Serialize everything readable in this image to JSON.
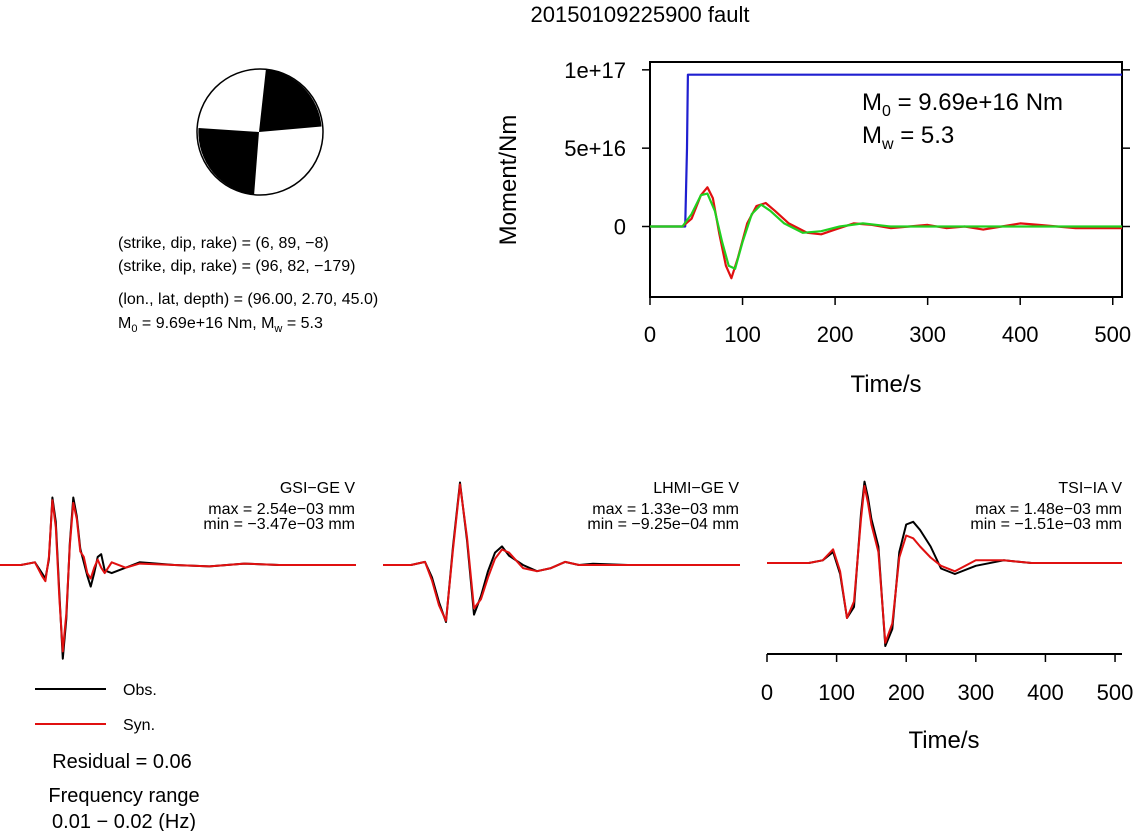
{
  "title": "20150109225900 fault",
  "mechanism": {
    "plane1": "(strike, dip, rake) = (6, 89, −8)",
    "plane2": "(strike, dip, rake) = (96, 82, −179)",
    "location": "(lon., lat, depth) = (96.00, 2.70, 45.0)",
    "moment_prefix": "M",
    "moment_sub": "0",
    "moment_value": " = 9.69e+16 Nm, M",
    "mw_sub": "w",
    "mw_value": " = 5.3"
  },
  "moment_chart": {
    "type": "line",
    "ylabel": "Moment/Nm",
    "xlabel": "Time/s",
    "xlim": [
      0,
      510
    ],
    "ylim": [
      -4.5e+16,
      1.05e+17
    ],
    "xticks": [
      0,
      100,
      200,
      300,
      400,
      500
    ],
    "yticks": [
      {
        "value": 1e+17,
        "label": "1e+17"
      },
      {
        "value": 5e+16,
        "label": "5e+16"
      },
      {
        "value": 0,
        "label": "0"
      }
    ],
    "annotation_m0_prefix": "M",
    "annotation_m0_sub": "0",
    "annotation_m0_value": " = 9.69e+16 Nm",
    "annotation_mw_prefix": "M",
    "annotation_mw_sub": "w",
    "annotation_mw_value": " = 5.3",
    "colors": {
      "cumulative": "#1f1fd0",
      "rate_red": "#e01010",
      "rate_green": "#20d020"
    }
  },
  "chart_data": [
    {
      "type": "line",
      "ylabel": "Moment/Nm",
      "xlabel": "Time/s",
      "xlim": [
        0,
        510
      ],
      "series": [
        {
          "color": "#1f1fd0",
          "x": [
            0,
            38,
            40,
            41,
            510
          ],
          "values": [
            0,
            0,
            5e+16,
            9.69e+16,
            9.69e+16
          ]
        },
        {
          "color": "#e01010",
          "x": [
            0,
            35,
            45,
            55,
            62,
            68,
            75,
            82,
            88,
            95,
            105,
            115,
            125,
            135,
            150,
            170,
            185,
            200,
            220,
            240,
            260,
            280,
            300,
            320,
            340,
            360,
            380,
            400,
            420,
            440,
            460,
            480,
            510
          ],
          "values": [
            0,
            0,
            5000000000000000.0,
            2e+16,
            2.5e+16,
            1.8e+16,
            -5000000000000000.0,
            -2.5e+16,
            -3.3e+16,
            -2e+16,
            2000000000000000.0,
            1.3e+16,
            1.5e+16,
            1e+16,
            2000000000000000.0,
            -4000000000000000.0,
            -5000000000000000.0,
            -2000000000000000.0,
            2000000000000000.0,
            1000000000000000.0,
            -1000000000000000.0,
            0,
            1000000000000000.0,
            -1000000000000000.0,
            0,
            -2000000000000000.0,
            0,
            2000000000000000.0,
            1000000000000000.0,
            0,
            -1000000000000000.0,
            -1000000000000000.0,
            -1000000000000000.0
          ]
        },
        {
          "color": "#20d020",
          "x": [
            0,
            35,
            45,
            55,
            62,
            70,
            78,
            85,
            92,
            100,
            110,
            120,
            130,
            145,
            165,
            185,
            205,
            230,
            260,
            300,
            350,
            400,
            450,
            510
          ],
          "values": [
            0,
            0,
            8000000000000000.0,
            2e+16,
            2.1e+16,
            1e+16,
            -1e+16,
            -2.5e+16,
            -2.7e+16,
            -1e+16,
            8000000000000000.0,
            1.4e+16,
            1e+16,
            2000000000000000.0,
            -4000000000000000.0,
            -3000000000000000.0,
            0,
            2000000000000000.0,
            0,
            0,
            0,
            0,
            0,
            0
          ]
        }
      ]
    },
    {
      "type": "line",
      "title": "GSI−GE V",
      "max_label": "max = 2.54e−03 mm",
      "min_label": "min = −3.47e−03 mm",
      "series": [
        {
          "name": "Obs.",
          "color": "#000000",
          "x": [
            0,
            30,
            50,
            60,
            65,
            70,
            75,
            80,
            85,
            90,
            95,
            100,
            105,
            110,
            115,
            120,
            125,
            130,
            135,
            140,
            145,
            150,
            160,
            180,
            200,
            250,
            300,
            350,
            400,
            450,
            510
          ],
          "values": [
            0,
            0,
            0.1,
            -0.3,
            -0.5,
            0.2,
            2.5,
            1.6,
            -1.0,
            -3.47,
            -2.0,
            0.8,
            2.5,
            1.8,
            0.6,
            0.1,
            -0.4,
            -0.8,
            -0.3,
            0.3,
            0.4,
            -0.2,
            -0.3,
            -0.1,
            0.1,
            0,
            -0.05,
            0.05,
            0,
            0,
            0
          ]
        },
        {
          "name": "Syn.",
          "color": "#e01010",
          "x": [
            0,
            30,
            50,
            60,
            65,
            70,
            75,
            80,
            85,
            90,
            95,
            100,
            105,
            110,
            115,
            120,
            125,
            130,
            135,
            140,
            145,
            150,
            160,
            180,
            200,
            250,
            300,
            350,
            400,
            450,
            510
          ],
          "values": [
            0,
            0,
            0.1,
            -0.4,
            -0.6,
            0.3,
            2.4,
            1.4,
            -1.2,
            -3.2,
            -1.8,
            0.7,
            2.3,
            1.7,
            0.5,
            0.3,
            -0.3,
            -0.5,
            -0.1,
            0.2,
            -0.1,
            -0.3,
            0.1,
            -0.1,
            0.05,
            0,
            -0.05,
            0.05,
            0,
            0,
            0
          ]
        }
      ]
    },
    {
      "type": "line",
      "title": "LHMI−GE V",
      "max_label": "max = 1.33e−03 mm",
      "min_label": "min = −9.25e−04 mm",
      "series": [
        {
          "name": "Obs.",
          "color": "#000000",
          "x": [
            0,
            40,
            60,
            70,
            80,
            90,
            100,
            110,
            120,
            130,
            140,
            150,
            160,
            170,
            180,
            200,
            220,
            240,
            260,
            280,
            300,
            350,
            400,
            450,
            510
          ],
          "values": [
            0,
            0,
            0.05,
            -0.2,
            -0.6,
            -0.92,
            0.3,
            1.33,
            0.4,
            -0.8,
            -0.5,
            -0.1,
            0.2,
            0.3,
            0.15,
            0,
            -0.1,
            -0.05,
            0.05,
            0,
            0.02,
            0,
            0,
            0,
            0
          ]
        },
        {
          "name": "Syn.",
          "color": "#e01010",
          "x": [
            0,
            40,
            60,
            70,
            80,
            90,
            100,
            110,
            120,
            130,
            140,
            150,
            160,
            170,
            180,
            200,
            220,
            240,
            260,
            280,
            300,
            350,
            400,
            450,
            510
          ],
          "values": [
            0,
            0,
            0.05,
            -0.25,
            -0.65,
            -0.9,
            0.25,
            1.3,
            0.45,
            -0.7,
            -0.55,
            -0.2,
            0.1,
            0.25,
            0.2,
            -0.05,
            -0.1,
            -0.05,
            0.05,
            0,
            0,
            0,
            0,
            0,
            0
          ]
        }
      ]
    },
    {
      "type": "line",
      "title": "TSI−IA V",
      "max_label": "max = 1.48e−03 mm",
      "min_label": "min = −1.51e−03 mm",
      "xlabel": "Time/s",
      "xlim": [
        0,
        510
      ],
      "xticks": [
        0,
        100,
        200,
        300,
        400,
        500
      ],
      "series": [
        {
          "name": "Obs.",
          "color": "#000000",
          "x": [
            0,
            60,
            80,
            95,
            105,
            115,
            125,
            135,
            140,
            145,
            150,
            160,
            170,
            180,
            190,
            200,
            210,
            220,
            235,
            250,
            270,
            300,
            340,
            380,
            420,
            460,
            510
          ],
          "values": [
            0,
            0,
            0.05,
            0.2,
            -0.2,
            -1.0,
            -0.8,
            0.9,
            1.48,
            1.2,
            0.8,
            0.3,
            -1.51,
            -1.2,
            0.2,
            0.7,
            0.75,
            0.6,
            0.3,
            -0.1,
            -0.2,
            -0.05,
            0.05,
            0,
            0,
            0,
            0
          ]
        },
        {
          "name": "Syn.",
          "color": "#e01010",
          "x": [
            0,
            60,
            80,
            95,
            105,
            115,
            125,
            135,
            140,
            145,
            150,
            160,
            170,
            180,
            190,
            200,
            210,
            220,
            235,
            250,
            270,
            300,
            340,
            380,
            420,
            460,
            510
          ],
          "values": [
            0,
            0,
            0.05,
            0.25,
            -0.15,
            -1.0,
            -0.7,
            0.8,
            1.4,
            1.1,
            0.7,
            0.2,
            -1.45,
            -1.1,
            0.1,
            0.5,
            0.45,
            0.3,
            0.1,
            -0.05,
            -0.15,
            0.05,
            0.05,
            0,
            0,
            0,
            0
          ]
        }
      ]
    }
  ],
  "legend": {
    "obs_label": "Obs.",
    "syn_label": "Syn.",
    "obs_color": "#000000",
    "syn_color": "#e01010"
  },
  "residual": "Residual = 0.06",
  "frequency_title": "Frequency range",
  "frequency_value": "0.01 − 0.02 (Hz)"
}
